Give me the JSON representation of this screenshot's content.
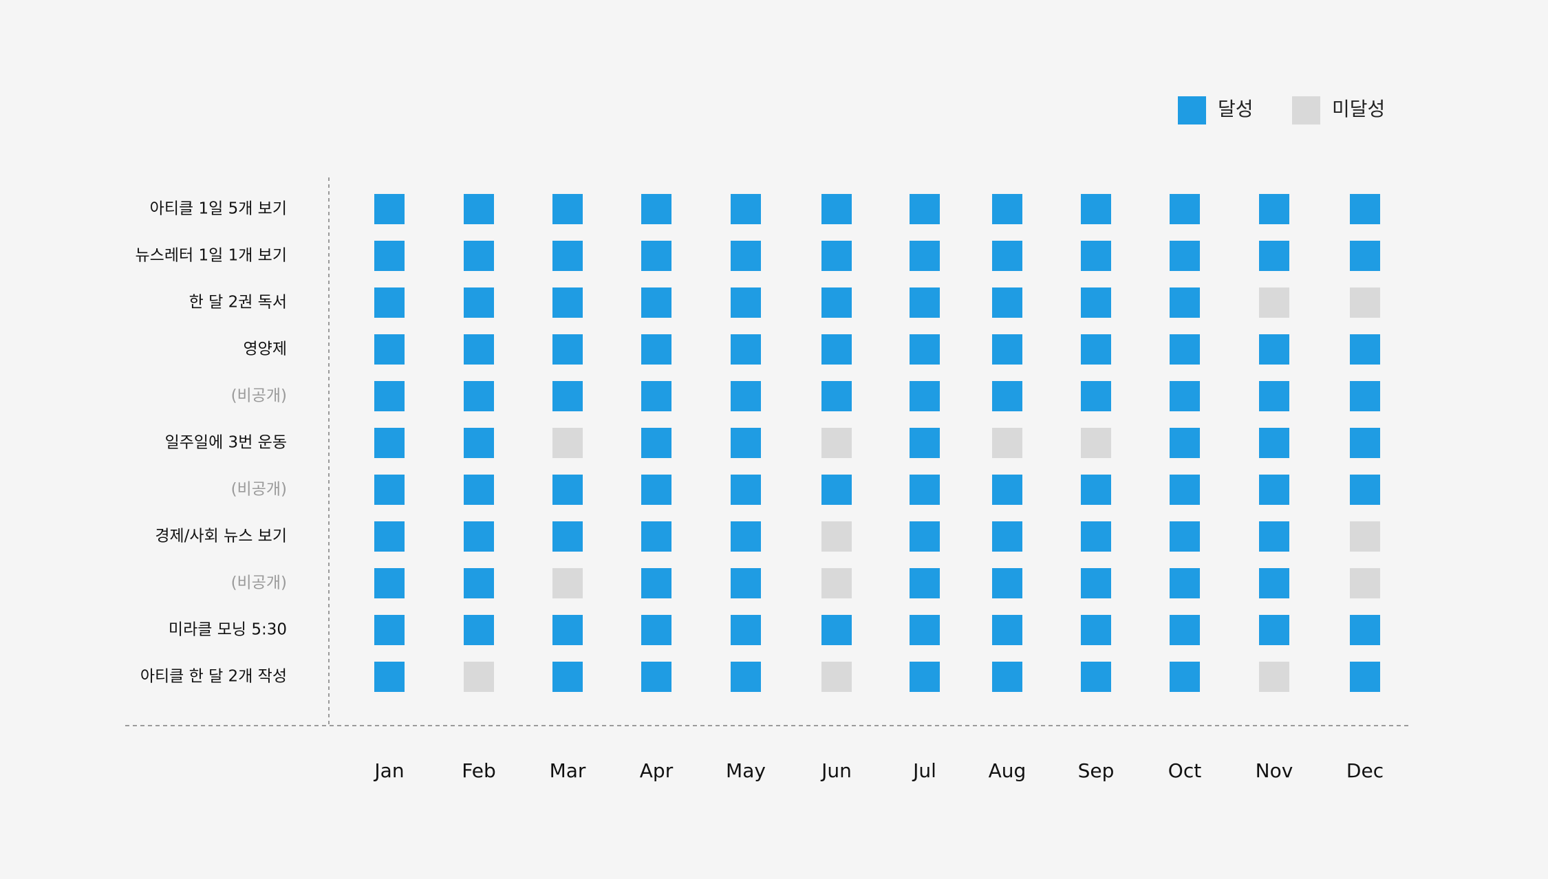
{
  "legend": {
    "achieved_label": "달성",
    "not_achieved_label": "미달성"
  },
  "colors": {
    "background": "#f5f5f5",
    "achieved": "#1f9ce3",
    "not_achieved": "#d9d9d9",
    "text": "#111111",
    "private_text": "#9a9a9a",
    "axis_line": "#9a9a9a"
  },
  "chart_data": {
    "type": "heatmap",
    "title": "",
    "xlabel": "",
    "ylabel": "",
    "grid": false,
    "legend_position": "top-right",
    "legend": [
      {
        "label": "달성",
        "value": 1
      },
      {
        "label": "미달성",
        "value": 0
      }
    ],
    "x": [
      "Jan",
      "Feb",
      "Mar",
      "Apr",
      "May",
      "Jun",
      "Jul",
      "Aug",
      "Sep",
      "Oct",
      "Nov",
      "Dec"
    ],
    "rows": [
      {
        "label": "아티클 1일 5개 보기",
        "private": false,
        "values": [
          1,
          1,
          1,
          1,
          1,
          1,
          1,
          1,
          1,
          1,
          1,
          1
        ]
      },
      {
        "label": "뉴스레터 1일 1개 보기",
        "private": false,
        "values": [
          1,
          1,
          1,
          1,
          1,
          1,
          1,
          1,
          1,
          1,
          1,
          1
        ]
      },
      {
        "label": "한 달 2권 독서",
        "private": false,
        "values": [
          1,
          1,
          1,
          1,
          1,
          1,
          1,
          1,
          1,
          1,
          0,
          0
        ]
      },
      {
        "label": "영양제",
        "private": false,
        "values": [
          1,
          1,
          1,
          1,
          1,
          1,
          1,
          1,
          1,
          1,
          1,
          1
        ]
      },
      {
        "label": "(비공개)",
        "private": true,
        "values": [
          1,
          1,
          1,
          1,
          1,
          1,
          1,
          1,
          1,
          1,
          1,
          1
        ]
      },
      {
        "label": "일주일에 3번 운동",
        "private": false,
        "values": [
          1,
          1,
          0,
          1,
          1,
          0,
          1,
          0,
          0,
          1,
          1,
          1
        ]
      },
      {
        "label": "(비공개)",
        "private": true,
        "values": [
          1,
          1,
          1,
          1,
          1,
          1,
          1,
          1,
          1,
          1,
          1,
          1
        ]
      },
      {
        "label": "경제/사회 뉴스 보기",
        "private": false,
        "values": [
          1,
          1,
          1,
          1,
          1,
          0,
          1,
          1,
          1,
          1,
          1,
          0
        ]
      },
      {
        "label": "(비공개)",
        "private": true,
        "values": [
          1,
          1,
          0,
          1,
          1,
          0,
          1,
          1,
          1,
          1,
          1,
          0
        ]
      },
      {
        "label": "미라클 모닝 5:30",
        "private": false,
        "values": [
          1,
          1,
          1,
          1,
          1,
          1,
          1,
          1,
          1,
          1,
          1,
          1
        ]
      },
      {
        "label": "아티클 한 달 2개 작성",
        "private": false,
        "values": [
          1,
          0,
          1,
          1,
          1,
          0,
          1,
          1,
          1,
          1,
          0,
          1
        ]
      }
    ]
  }
}
